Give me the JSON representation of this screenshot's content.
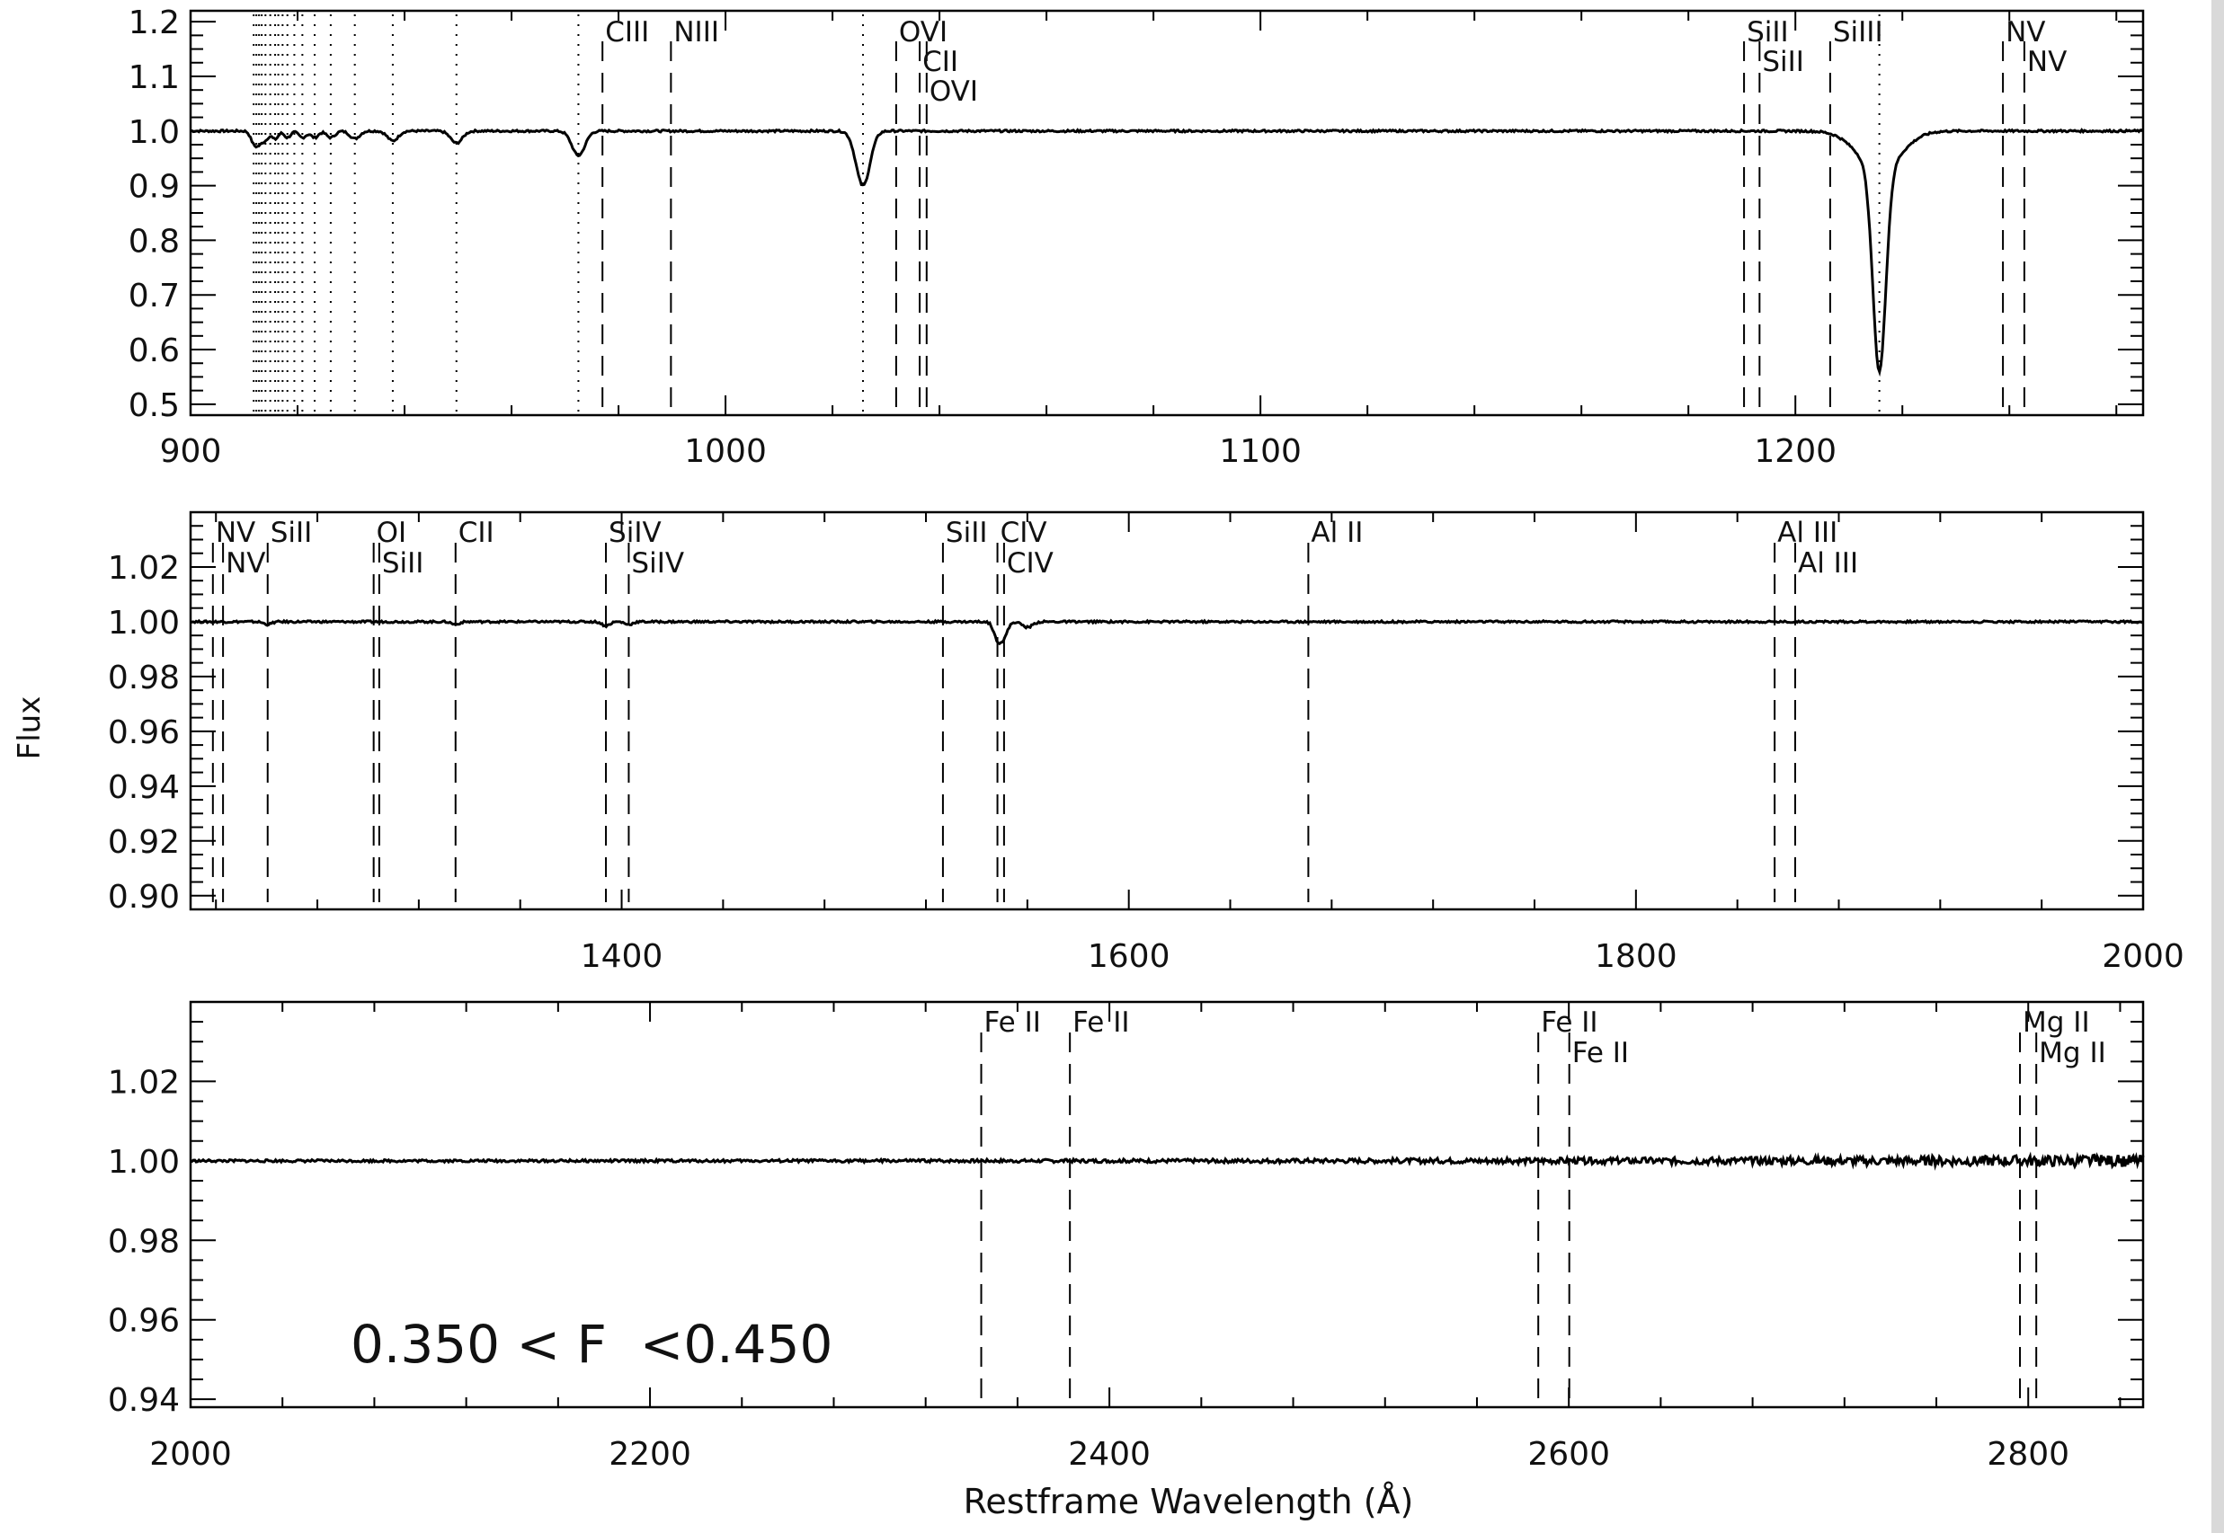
{
  "figure": {
    "ylabel": "Flux",
    "xlabel": "Restframe Wavelength (Å)",
    "annotation": "0.350 < F  <0.450"
  },
  "chart_data": [
    {
      "type": "line",
      "xlim": [
        900,
        1265
      ],
      "ylim": [
        0.48,
        1.22
      ],
      "xticks": [
        900,
        1000,
        1100,
        1200
      ],
      "yticks": [
        0.5,
        0.6,
        0.7,
        0.8,
        0.9,
        1.0,
        1.1,
        1.2
      ],
      "ytick_labels": [
        "0.5",
        "0.6",
        "0.7",
        "0.8",
        "0.9",
        "1.0",
        "1.1",
        "1.2"
      ],
      "continuum": 1.0,
      "absorption_features": [
        {
          "x": 911.8,
          "depth": 0.02,
          "width": 0.6
        },
        {
          "x": 912.8,
          "depth": 0.02,
          "width": 0.6
        },
        {
          "x": 914.0,
          "depth": 0.015,
          "width": 0.6
        },
        {
          "x": 915.8,
          "depth": 0.015,
          "width": 0.6
        },
        {
          "x": 918.1,
          "depth": 0.012,
          "width": 0.6
        },
        {
          "x": 920.9,
          "depth": 0.012,
          "width": 0.7
        },
        {
          "x": 923.2,
          "depth": 0.012,
          "width": 0.7
        },
        {
          "x": 926.2,
          "depth": 0.012,
          "width": 0.8
        },
        {
          "x": 930.7,
          "depth": 0.014,
          "width": 0.9
        },
        {
          "x": 937.8,
          "depth": 0.018,
          "width": 1.0
        },
        {
          "x": 949.7,
          "depth": 0.022,
          "width": 1.1
        },
        {
          "x": 972.5,
          "depth": 0.045,
          "width": 1.2
        },
        {
          "x": 1025.7,
          "depth": 0.1,
          "width": 1.3
        },
        {
          "x": 1215.7,
          "depth": 0.37,
          "width": 1.2
        },
        {
          "x": 1215.7,
          "depth": 0.07,
          "width": 4.0
        }
      ],
      "lines_dashed": [
        977.0,
        989.8,
        1031.9,
        1036.3,
        1037.6,
        1190.4,
        1193.3,
        1206.5,
        1238.8,
        1242.8
      ],
      "lines_dotted": [
        911.8,
        912.3,
        912.8,
        913.3,
        914.0,
        914.9,
        915.8,
        916.4,
        917.2,
        918.1,
        919.4,
        920.9,
        923.2,
        926.2,
        930.7,
        937.8,
        949.7,
        972.5,
        1025.7,
        1215.7
      ],
      "line_labels": [
        {
          "text": "CIII",
          "x": 977.0,
          "row": 0
        },
        {
          "text": "NIII",
          "x": 989.8,
          "row": 0
        },
        {
          "text": "OVI",
          "x": 1031.9,
          "row": 0
        },
        {
          "text": "CII",
          "x": 1036.3,
          "row": 1
        },
        {
          "text": "OVI",
          "x": 1037.6,
          "row": 2
        },
        {
          "text": "SiII",
          "x": 1190.4,
          "row": 0
        },
        {
          "text": "SiII",
          "x": 1193.3,
          "row": 1
        },
        {
          "text": "SiIII",
          "x": 1206.5,
          "row": 0
        },
        {
          "text": "NV",
          "x": 1238.8,
          "row": 0
        },
        {
          "text": "NV",
          "x": 1242.8,
          "row": 1
        }
      ]
    },
    {
      "type": "line",
      "xlim": [
        1230,
        2000
      ],
      "ylim": [
        0.895,
        1.04
      ],
      "xticks": [
        1400,
        1600,
        1800,
        2000
      ],
      "yticks": [
        0.9,
        0.92,
        0.94,
        0.96,
        0.98,
        1.0,
        1.02
      ],
      "ytick_labels": [
        "0.90",
        "0.92",
        "0.94",
        "0.96",
        "0.98",
        "1.00",
        "1.02"
      ],
      "continuum": 1.0,
      "absorption_features": [
        {
          "x": 1548.2,
          "depth": 0.006,
          "width": 1.5
        },
        {
          "x": 1550.8,
          "depth": 0.005,
          "width": 1.5
        },
        {
          "x": 1560.0,
          "depth": 0.002,
          "width": 2.0
        },
        {
          "x": 1393.8,
          "depth": 0.0015,
          "width": 1.5
        },
        {
          "x": 1402.8,
          "depth": 0.001,
          "width": 1.5
        },
        {
          "x": 1334.5,
          "depth": 0.001,
          "width": 1.5
        },
        {
          "x": 1260.4,
          "depth": 0.001,
          "width": 1.5
        }
      ],
      "lines_dashed": [
        1238.8,
        1242.8,
        1260.4,
        1302.2,
        1304.4,
        1334.5,
        1393.8,
        1402.8,
        1526.7,
        1548.2,
        1550.8,
        1670.8,
        1854.7,
        1862.8
      ],
      "line_labels": [
        {
          "text": "NV",
          "x": 1238.8,
          "row": 0
        },
        {
          "text": "NV",
          "x": 1242.8,
          "row": 1
        },
        {
          "text": "SiII",
          "x": 1260.4,
          "row": 0
        },
        {
          "text": "OI",
          "x": 1302.2,
          "row": 0
        },
        {
          "text": "SiII",
          "x": 1304.4,
          "row": 1
        },
        {
          "text": "CII",
          "x": 1334.5,
          "row": 0
        },
        {
          "text": "SiIV",
          "x": 1393.8,
          "row": 0
        },
        {
          "text": "SiIV",
          "x": 1402.8,
          "row": 1
        },
        {
          "text": "SiII",
          "x": 1526.7,
          "row": 0
        },
        {
          "text": "CIV",
          "x": 1548.2,
          "row": 0
        },
        {
          "text": "CIV",
          "x": 1550.8,
          "row": 1
        },
        {
          "text": "Al  II",
          "x": 1670.8,
          "row": 0
        },
        {
          "text": "Al  III",
          "x": 1854.7,
          "row": 0
        },
        {
          "text": "Al  III",
          "x": 1862.8,
          "row": 1
        }
      ]
    },
    {
      "type": "line",
      "xlim": [
        2000,
        2850
      ],
      "ylim": [
        0.938,
        1.04
      ],
      "xticks": [
        2000,
        2200,
        2400,
        2600,
        2800
      ],
      "yticks": [
        0.94,
        0.96,
        0.98,
        1.0,
        1.02
      ],
      "ytick_labels": [
        "0.94",
        "0.96",
        "0.98",
        "1.00",
        "1.02"
      ],
      "continuum": 1.0,
      "absorption_features": [],
      "lines_dashed": [
        2344.2,
        2382.8,
        2586.7,
        2600.2,
        2796.4,
        2803.5
      ],
      "line_labels": [
        {
          "text": "Fe  II",
          "x": 2344.2,
          "row": 0
        },
        {
          "text": "Fe  II",
          "x": 2382.8,
          "row": 0
        },
        {
          "text": "Fe  II",
          "x": 2586.7,
          "row": 0
        },
        {
          "text": "Fe  II",
          "x": 2600.2,
          "row": 1
        },
        {
          "text": "Mg  II",
          "x": 2796.4,
          "row": 0
        },
        {
          "text": "Mg  II",
          "x": 2803.5,
          "row": 1
        }
      ]
    }
  ]
}
